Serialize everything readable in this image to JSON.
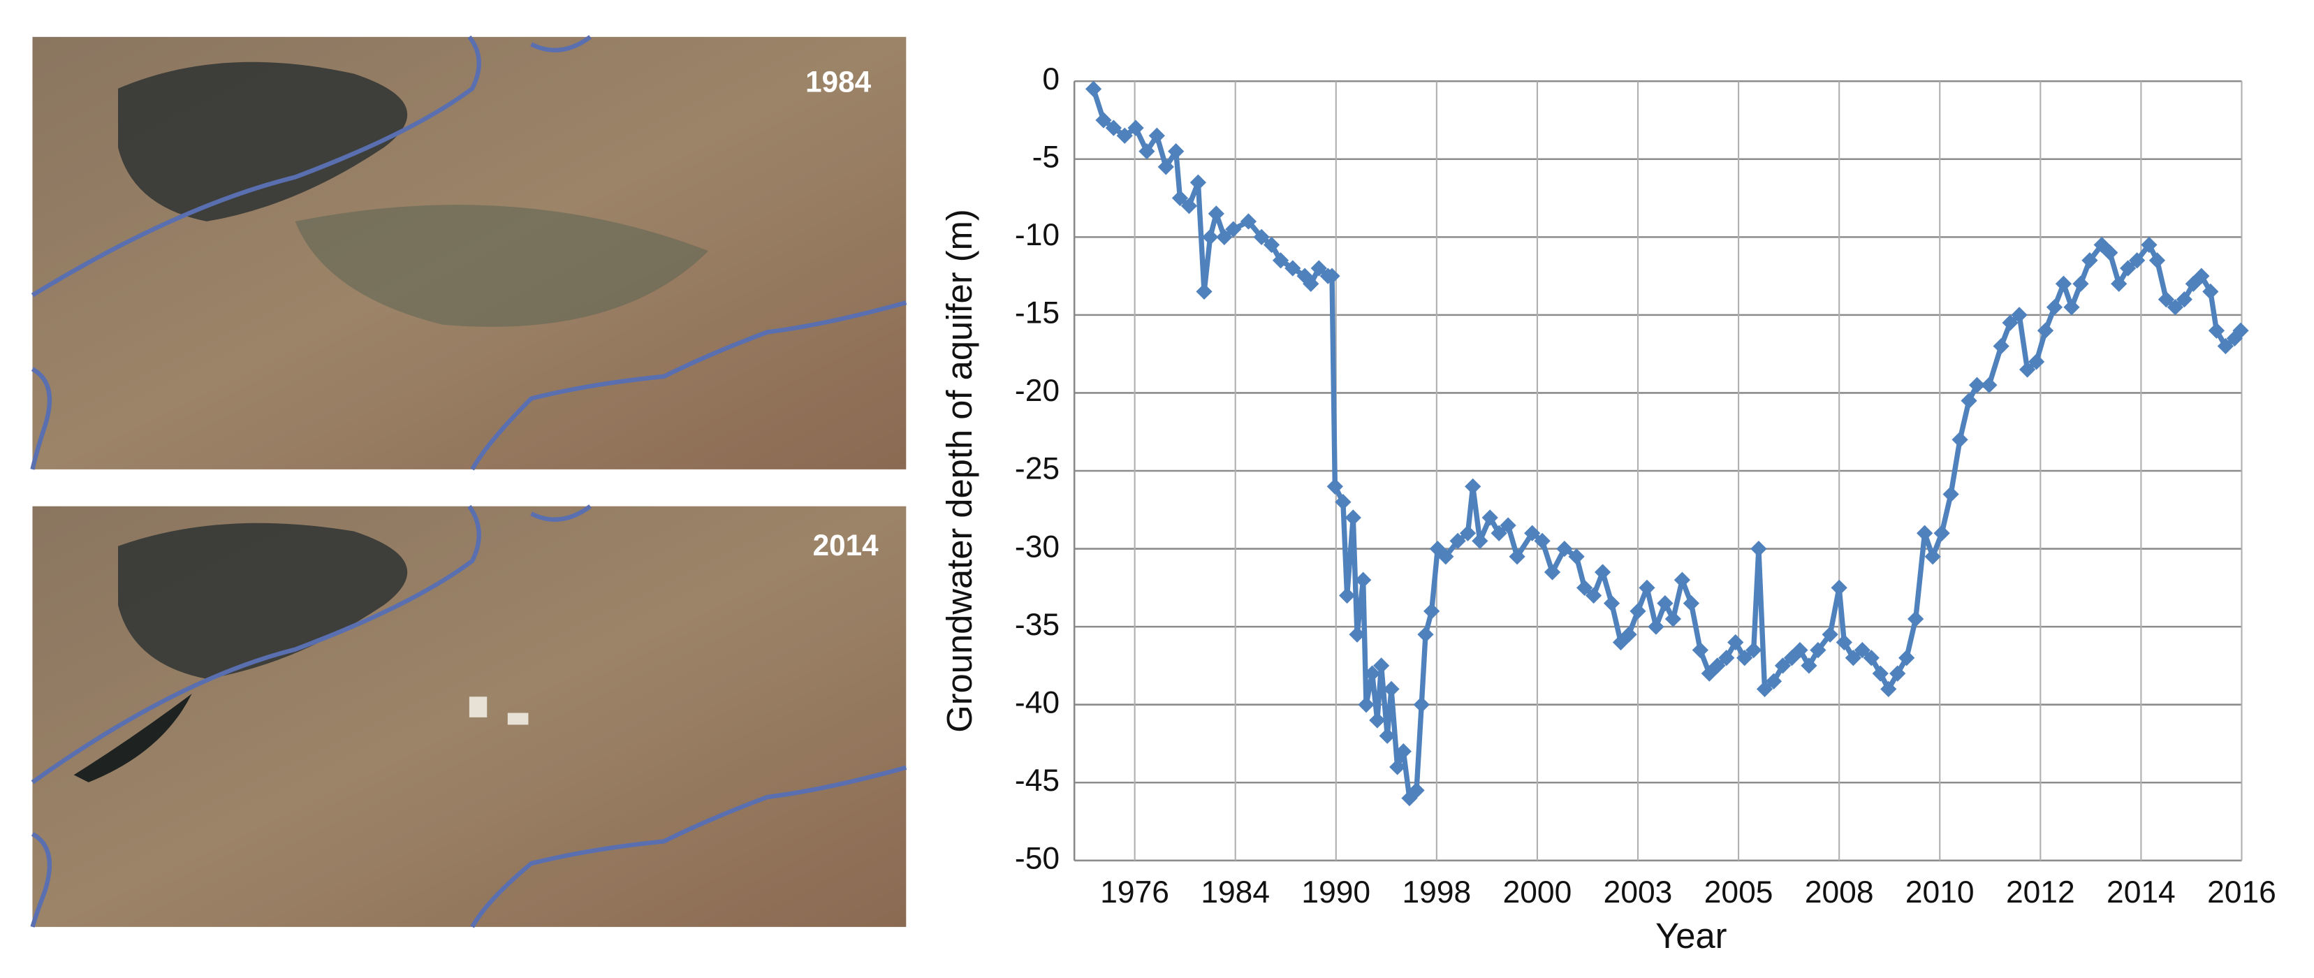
{
  "images": [
    {
      "label": "1984"
    },
    {
      "label": "2014"
    }
  ],
  "chart_data": {
    "type": "line",
    "xlabel": "Year",
    "ylabel": "Groundwater depth of aquifer (m)",
    "color": "#4f81bd",
    "grid": true,
    "xlim": [
      -0.6,
      11
    ],
    "ylim": [
      -50,
      0
    ],
    "xticks": [
      {
        "value": 0,
        "label": "1976"
      },
      {
        "value": 1,
        "label": "1984"
      },
      {
        "value": 2,
        "label": "1990"
      },
      {
        "value": 3,
        "label": "1998"
      },
      {
        "value": 4,
        "label": "2000"
      },
      {
        "value": 5,
        "label": "2003"
      },
      {
        "value": 6,
        "label": "2005"
      },
      {
        "value": 7,
        "label": "2008"
      },
      {
        "value": 8,
        "label": "2010"
      },
      {
        "value": 9,
        "label": "2012"
      },
      {
        "value": 10,
        "label": "2014"
      },
      {
        "value": 11,
        "label": "2016"
      }
    ],
    "yticks": [
      0,
      -5,
      -10,
      -15,
      -20,
      -25,
      -30,
      -35,
      -40,
      -45,
      -50
    ],
    "x": [
      -0.41,
      -0.31,
      -0.21,
      -0.1,
      0.01,
      0.12,
      0.22,
      0.31,
      0.41,
      0.45,
      0.54,
      0.63,
      0.69,
      0.75,
      0.81,
      0.89,
      0.98,
      1.13,
      1.26,
      1.36,
      1.45,
      1.57,
      1.69,
      1.75,
      1.83,
      1.92,
      1.96,
      1.99,
      2.07,
      2.11,
      2.17,
      2.21,
      2.27,
      2.3,
      2.36,
      2.41,
      2.45,
      2.51,
      2.55,
      2.61,
      2.67,
      2.73,
      2.8,
      2.85,
      2.89,
      2.95,
      3.01,
      3.09,
      3.21,
      3.31,
      3.36,
      3.43,
      3.53,
      3.62,
      3.71,
      3.8,
      3.95,
      4.05,
      4.15,
      4.27,
      4.39,
      4.47,
      4.56,
      4.65,
      4.74,
      4.83,
      4.91,
      5.0,
      5.09,
      5.18,
      5.27,
      5.35,
      5.44,
      5.53,
      5.62,
      5.71,
      5.79,
      5.88,
      5.97,
      6.06,
      6.15,
      6.2,
      6.26,
      6.35,
      6.44,
      6.53,
      6.61,
      6.7,
      6.79,
      6.91,
      7.0,
      7.05,
      7.14,
      7.23,
      7.32,
      7.41,
      7.49,
      7.58,
      7.67,
      7.76,
      7.85,
      7.93,
      8.02,
      8.11,
      8.2,
      8.29,
      8.37,
      8.49,
      8.61,
      8.7,
      8.79,
      8.87,
      8.96,
      9.05,
      9.14,
      9.23,
      9.31,
      9.4,
      9.49,
      9.61,
      9.69,
      9.78,
      9.87,
      9.96,
      10.08,
      10.16,
      10.25,
      10.34,
      10.43,
      10.52,
      10.6,
      10.69,
      10.75,
      10.84,
      10.93,
      10.99
    ],
    "values": [
      -0.5,
      -2.5,
      -3,
      -3.5,
      -3,
      -4.5,
      -3.5,
      -5.5,
      -4.5,
      -7.5,
      -8,
      -6.5,
      -13.5,
      -10,
      -8.5,
      -10,
      -9.5,
      -9,
      -10,
      -10.5,
      -11.5,
      -12,
      -12.5,
      -13,
      -12,
      -12.5,
      -12.5,
      -26,
      -27,
      -33,
      -28,
      -35.5,
      -32,
      -40,
      -38,
      -41,
      -37.5,
      -42,
      -39,
      -44,
      -43,
      -46,
      -45.5,
      -40,
      -35.5,
      -34,
      -30,
      -30.5,
      -29.5,
      -29,
      -26,
      -29.5,
      -28,
      -29,
      -28.5,
      -30.5,
      -29,
      -29.5,
      -31.5,
      -30,
      -30.5,
      -32.5,
      -33,
      -31.5,
      -33.5,
      -36,
      -35.5,
      -34,
      -32.5,
      -35,
      -33.5,
      -34.5,
      -32,
      -33.5,
      -36.5,
      -38,
      -37.5,
      -37,
      -36,
      -37,
      -36.5,
      -30,
      -39,
      -38.5,
      -37.5,
      -37,
      -36.5,
      -37.5,
      -36.5,
      -35.5,
      -32.5,
      -36,
      -37,
      -36.5,
      -37,
      -38,
      -39,
      -38,
      -37,
      -34.5,
      -29,
      -30.5,
      -29,
      -26.5,
      -23,
      -20.5,
      -19.5,
      -19.5,
      -17,
      -15.5,
      -15,
      -18.5,
      -18,
      -16,
      -14.5,
      -13,
      -14.5,
      -13,
      -11.5,
      -10.5,
      -11,
      -13,
      -12,
      -11.5,
      -10.5,
      -11.5,
      -14,
      -14.5,
      -14,
      -13,
      -12.5,
      -13.5,
      -16,
      -17,
      -16.5,
      -16
    ]
  }
}
